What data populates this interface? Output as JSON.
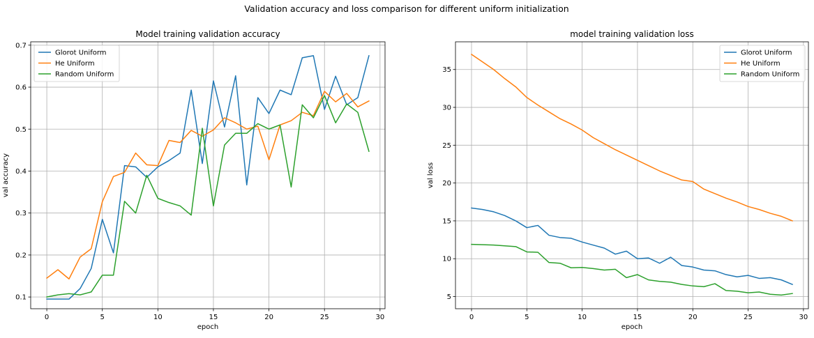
{
  "suptitle": "Validation accuracy and loss comparison for different uniform initialization",
  "chart_data": [
    {
      "type": "line",
      "title": "Model training validation accuracy",
      "xlabel": "epoch",
      "ylabel": "val accuracy",
      "xlim": [
        -1.45,
        30.45
      ],
      "ylim": [
        0.072,
        0.708
      ],
      "xticks": [
        0,
        5,
        10,
        15,
        20,
        25,
        30
      ],
      "yticks": [
        0.1,
        0.2,
        0.3,
        0.4,
        0.5,
        0.6,
        0.7
      ],
      "grid": true,
      "legend_position": "upper-left",
      "x": [
        0,
        1,
        2,
        3,
        4,
        5,
        6,
        7,
        8,
        9,
        10,
        11,
        12,
        13,
        14,
        15,
        16,
        17,
        18,
        19,
        20,
        21,
        22,
        23,
        24,
        25,
        26,
        27,
        28,
        29
      ],
      "series": [
        {
          "name": "Glorot Uniform",
          "color": "#1f77b4",
          "values": [
            0.095,
            0.095,
            0.095,
            0.12,
            0.168,
            0.285,
            0.205,
            0.413,
            0.41,
            0.385,
            0.41,
            0.425,
            0.443,
            0.593,
            0.418,
            0.615,
            0.505,
            0.627,
            0.367,
            0.575,
            0.537,
            0.593,
            0.582,
            0.67,
            0.675,
            0.547,
            0.626,
            0.558,
            0.575,
            0.675
          ]
        },
        {
          "name": "He Uniform",
          "color": "#ff7f0e",
          "values": [
            0.145,
            0.165,
            0.143,
            0.195,
            0.215,
            0.327,
            0.387,
            0.397,
            0.443,
            0.415,
            0.413,
            0.473,
            0.468,
            0.497,
            0.483,
            0.498,
            0.527,
            0.515,
            0.5,
            0.507,
            0.427,
            0.51,
            0.52,
            0.54,
            0.532,
            0.59,
            0.565,
            0.585,
            0.553,
            0.567
          ]
        },
        {
          "name": "Random Uniform",
          "color": "#2ca02c",
          "values": [
            0.1,
            0.105,
            0.108,
            0.105,
            0.112,
            0.152,
            0.152,
            0.328,
            0.3,
            0.39,
            0.335,
            0.325,
            0.317,
            0.295,
            0.502,
            0.317,
            0.462,
            0.49,
            0.49,
            0.513,
            0.5,
            0.51,
            0.362,
            0.558,
            0.527,
            0.58,
            0.515,
            0.56,
            0.54,
            0.447
          ]
        }
      ]
    },
    {
      "type": "line",
      "title": "model training validation loss",
      "xlabel": "epoch",
      "ylabel": "val loss",
      "xlim": [
        -1.45,
        30.45
      ],
      "ylim": [
        3.39,
        38.66
      ],
      "xticks": [
        0,
        5,
        10,
        15,
        20,
        25,
        30
      ],
      "yticks": [
        5,
        10,
        15,
        20,
        25,
        30,
        35
      ],
      "grid": true,
      "legend_position": "upper-right",
      "x": [
        0,
        1,
        2,
        3,
        4,
        5,
        6,
        7,
        8,
        9,
        10,
        11,
        12,
        13,
        14,
        15,
        16,
        17,
        18,
        19,
        20,
        21,
        22,
        23,
        24,
        25,
        26,
        27,
        28,
        29
      ],
      "series": [
        {
          "name": "Glorot Uniform",
          "color": "#1f77b4",
          "values": [
            16.7,
            16.5,
            16.2,
            15.7,
            15.0,
            14.1,
            14.4,
            13.1,
            12.8,
            12.7,
            12.2,
            11.8,
            11.4,
            10.6,
            11.0,
            10.0,
            10.1,
            9.4,
            10.2,
            9.1,
            8.9,
            8.5,
            8.4,
            7.9,
            7.6,
            7.8,
            7.4,
            7.5,
            7.2,
            6.6
          ]
        },
        {
          "name": "He Uniform",
          "color": "#ff7f0e",
          "values": [
            37.0,
            36.0,
            35.0,
            33.8,
            32.7,
            31.3,
            30.3,
            29.4,
            28.5,
            27.8,
            27.0,
            26.0,
            25.2,
            24.4,
            23.7,
            23.0,
            22.3,
            21.6,
            21.0,
            20.4,
            20.2,
            19.2,
            18.6,
            18.0,
            17.5,
            16.9,
            16.5,
            16.0,
            15.6,
            15.0
          ]
        },
        {
          "name": "Random Uniform",
          "color": "#2ca02c",
          "values": [
            11.9,
            11.85,
            11.8,
            11.7,
            11.6,
            10.9,
            10.85,
            9.5,
            9.4,
            8.8,
            8.85,
            8.7,
            8.5,
            8.6,
            7.5,
            7.9,
            7.2,
            7.0,
            6.9,
            6.6,
            6.4,
            6.3,
            6.7,
            5.8,
            5.7,
            5.5,
            5.6,
            5.3,
            5.2,
            5.4
          ]
        }
      ]
    }
  ]
}
